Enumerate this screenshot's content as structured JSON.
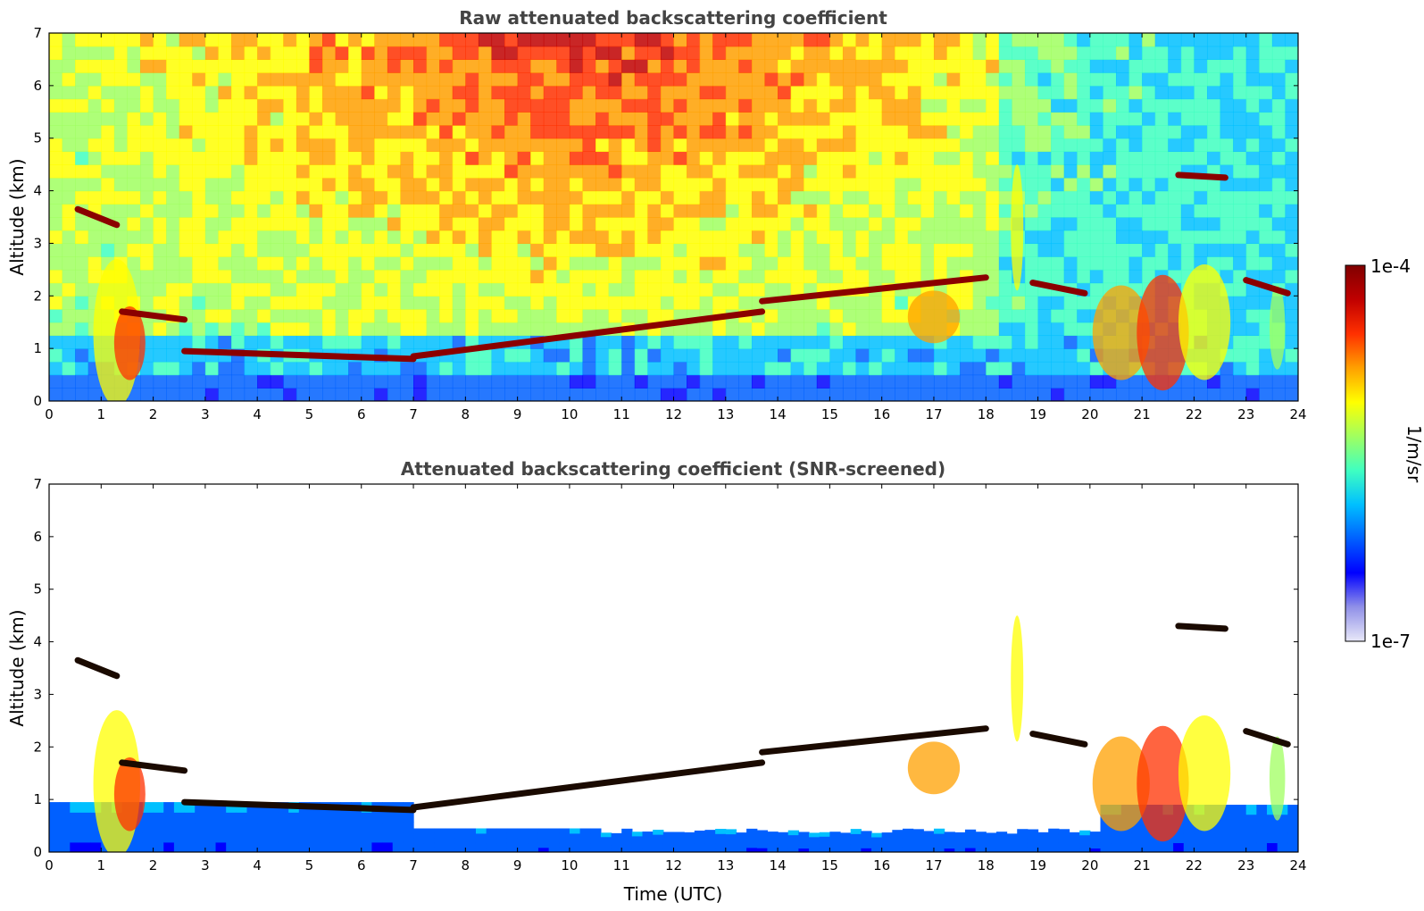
{
  "chart_data": [
    {
      "type": "heatmap",
      "title": "Raw attenuated backscattering coefficient",
      "xlabel": "",
      "ylabel": "Altitude (km)",
      "xlim": [
        0,
        24
      ],
      "ylim": [
        0,
        7
      ],
      "xticks": [
        "0",
        "1",
        "2",
        "3",
        "4",
        "5",
        "6",
        "7",
        "8",
        "9",
        "10",
        "11",
        "12",
        "13",
        "14",
        "15",
        "16",
        "17",
        "18",
        "19",
        "20",
        "21",
        "22",
        "23",
        "24"
      ],
      "yticks": [
        "0",
        "1",
        "2",
        "3",
        "4",
        "5",
        "6",
        "7"
      ],
      "layers": [
        {
          "x": [
            0.55,
            1.3
          ],
          "y": [
            3.65,
            3.35
          ]
        },
        {
          "x": [
            1.4,
            2.6
          ],
          "y": [
            1.7,
            1.55
          ]
        },
        {
          "x": [
            2.6,
            7.0
          ],
          "y": [
            0.95,
            0.8
          ]
        },
        {
          "x": [
            7.0,
            13.7
          ],
          "y": [
            0.85,
            1.7
          ]
        },
        {
          "x": [
            13.7,
            18.0
          ],
          "y": [
            1.9,
            2.35
          ]
        },
        {
          "x": [
            18.9,
            19.9
          ],
          "y": [
            2.25,
            2.05
          ]
        },
        {
          "x": [
            21.7,
            22.6
          ],
          "y": [
            4.3,
            4.25
          ]
        },
        {
          "x": [
            23.0,
            23.8
          ],
          "y": [
            2.3,
            2.05
          ]
        }
      ]
    },
    {
      "type": "heatmap",
      "title": "Attenuated backscattering coefficient (SNR-screened)",
      "xlabel": "Time (UTC)",
      "ylabel": "Altitude (km)",
      "xlim": [
        0,
        24
      ],
      "ylim": [
        0,
        7
      ],
      "xticks": [
        "0",
        "1",
        "2",
        "3",
        "4",
        "5",
        "6",
        "7",
        "8",
        "9",
        "10",
        "11",
        "12",
        "13",
        "14",
        "15",
        "16",
        "17",
        "18",
        "19",
        "20",
        "21",
        "22",
        "23",
        "24"
      ],
      "yticks": [
        "0",
        "1",
        "2",
        "3",
        "4",
        "5",
        "6",
        "7"
      ],
      "layers": [
        {
          "x": [
            0.55,
            1.3
          ],
          "y": [
            3.65,
            3.35
          ]
        },
        {
          "x": [
            1.4,
            2.6
          ],
          "y": [
            1.7,
            1.55
          ]
        },
        {
          "x": [
            2.6,
            7.0
          ],
          "y": [
            0.95,
            0.8
          ]
        },
        {
          "x": [
            7.0,
            13.7
          ],
          "y": [
            0.85,
            1.7
          ]
        },
        {
          "x": [
            13.7,
            18.0
          ],
          "y": [
            1.9,
            2.35
          ]
        },
        {
          "x": [
            18.9,
            19.9
          ],
          "y": [
            2.25,
            2.05
          ]
        },
        {
          "x": [
            21.7,
            22.6
          ],
          "y": [
            4.3,
            4.25
          ]
        },
        {
          "x": [
            23.0,
            23.8
          ],
          "y": [
            2.3,
            2.05
          ]
        }
      ]
    }
  ],
  "colorbar": {
    "label": "1/m/sr",
    "max_label": "1e-4",
    "min_label": "1e-7",
    "scale": "log",
    "colors": [
      "#e8e8f8",
      "#9090e8",
      "#0000ff",
      "#0060ff",
      "#00c0ff",
      "#40ffc0",
      "#a0ff60",
      "#ffff00",
      "#ffa000",
      "#ff3000",
      "#c00000",
      "#800000"
    ]
  }
}
